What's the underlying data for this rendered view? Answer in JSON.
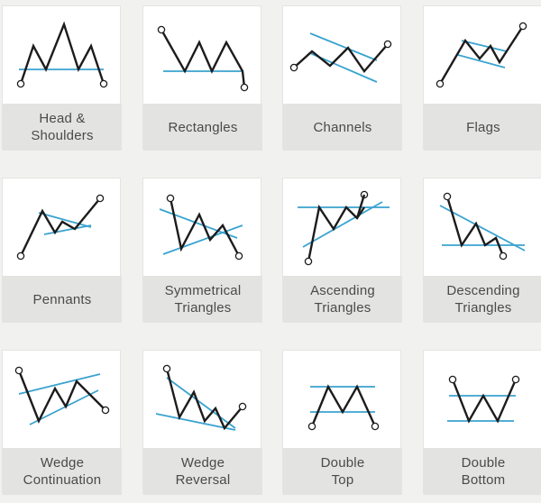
{
  "colors": {
    "price": "#1c1c1c",
    "trendline": "#3aa3cf",
    "label_bg": "#e3e3e1",
    "card_bg": "#ffffff",
    "page_bg": "#f1f1ef"
  },
  "patterns": [
    {
      "id": "head-and-shoulders",
      "label": "Head &\nShoulders"
    },
    {
      "id": "rectangles",
      "label": "Rectangles"
    },
    {
      "id": "channels",
      "label": "Channels"
    },
    {
      "id": "flags",
      "label": "Flags"
    },
    {
      "id": "pennants",
      "label": "Pennants"
    },
    {
      "id": "symmetrical-triangles",
      "label": "Symmetrical\nTriangles"
    },
    {
      "id": "ascending-triangles",
      "label": "Ascending\nTriangles"
    },
    {
      "id": "descending-triangles",
      "label": "Descending\nTriangles"
    },
    {
      "id": "wedge-continuation",
      "label": "Wedge\nContinuation"
    },
    {
      "id": "wedge-reversal",
      "label": "Wedge\nReversal"
    },
    {
      "id": "double-top",
      "label": "Double\nTop"
    },
    {
      "id": "double-bottom",
      "label": "Double\nBottom"
    }
  ]
}
